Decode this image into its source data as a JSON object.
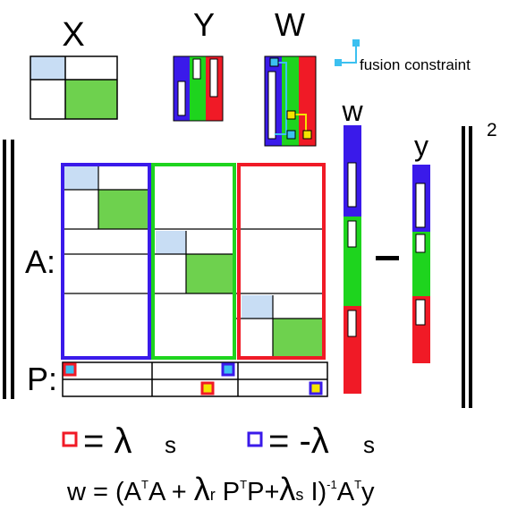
{
  "labels": {
    "X": "X",
    "Y": "Y",
    "W": "W",
    "fusion": "fusion constraint",
    "w": "w",
    "y": "y",
    "A": "A:",
    "P": "P:",
    "minus": "−",
    "exponent": "2",
    "pos_rhs": "= λ",
    "pos_sub": "s",
    "neg_rhs": "= -λ",
    "neg_sub": "s"
  },
  "formula": {
    "w_eq": "w = (A",
    "T1": "T",
    "A_plus": "A + ",
    "lambda_r": "λ",
    "r_sub": "r",
    "P1": " P",
    "T2": "T",
    "P_plus": "P+",
    "lambda_s": "λ",
    "s_sub": "s",
    "I_close": " I)",
    "inv": "-1",
    "A2": "A",
    "T3": "T",
    "y_end": "y"
  },
  "colors": {
    "blue": "#3a1aea",
    "green": "#1ed41e",
    "red": "#f01a26",
    "light_blue": "#c8ddf4",
    "light_green": "#6ed14e",
    "cyan": "#3cc0f0",
    "yellow": "#f5e400"
  }
}
